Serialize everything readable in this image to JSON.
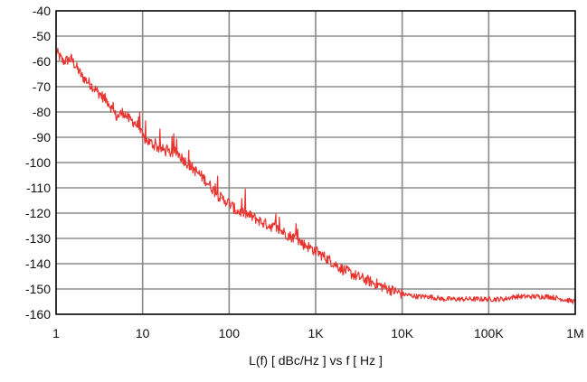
{
  "chart_data": {
    "type": "line",
    "title": "",
    "xlabel": "L(f) [ dBc/Hz ]  vs  f [ Hz ]",
    "ylabel": "",
    "x_scale": "log",
    "xlim": [
      1,
      1000000
    ],
    "ylim": [
      -160,
      -40
    ],
    "grid": true,
    "legend": "none",
    "x_ticks": [
      {
        "value": 1,
        "label": "1"
      },
      {
        "value": 10,
        "label": "10"
      },
      {
        "value": 100,
        "label": "100"
      },
      {
        "value": 1000,
        "label": "1K"
      },
      {
        "value": 10000,
        "label": "10K"
      },
      {
        "value": 100000,
        "label": "100K"
      },
      {
        "value": 1000000,
        "label": "1M"
      }
    ],
    "y_ticks": [
      -40,
      -50,
      -60,
      -70,
      -80,
      -90,
      -100,
      -110,
      -120,
      -130,
      -140,
      -150,
      -160
    ],
    "series": [
      {
        "name": "",
        "color": "#e8332e",
        "x": [
          1,
          1.2,
          1.5,
          2,
          2.5,
          3,
          4,
          5,
          6,
          7,
          8,
          9,
          10,
          12,
          15,
          20,
          25,
          30,
          40,
          50,
          60,
          70,
          80,
          90,
          100,
          120,
          150,
          200,
          250,
          300,
          400,
          500,
          600,
          700,
          800,
          1000,
          1500,
          2000,
          3000,
          5000,
          7000,
          10000,
          15000,
          20000,
          30000,
          50000,
          70000,
          100000,
          150000,
          200000,
          300000,
          500000,
          700000,
          1000000
        ],
        "y": [
          -56,
          -60,
          -59,
          -66,
          -69,
          -72,
          -76,
          -82,
          -80,
          -83,
          -84,
          -86,
          -90,
          -92,
          -94,
          -96,
          -96,
          -99,
          -103,
          -106,
          -109,
          -112,
          -114,
          -115,
          -116,
          -119,
          -120,
          -122,
          -124,
          -125,
          -127,
          -129,
          -130,
          -132,
          -133,
          -135,
          -139,
          -142,
          -145,
          -148,
          -150,
          -152,
          -153,
          -153,
          -154,
          -154,
          -154,
          -154,
          -154,
          -153,
          -153,
          -153,
          -154,
          -155
        ]
      }
    ]
  }
}
